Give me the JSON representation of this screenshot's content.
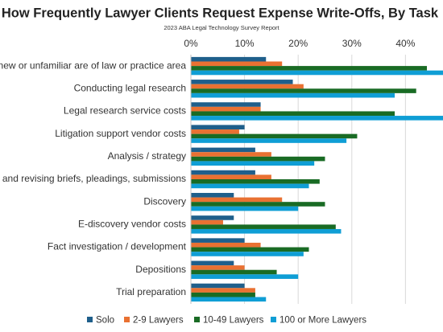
{
  "chart_data": {
    "type": "barh",
    "title": "How Frequently Lawyer Clients Request Expense Write-Offs, By Task",
    "subtitle": "2023 ABA Legal Technology Survey Report",
    "categories": [
      "Getting up to speed on new or unfamiliar are of law or practice area",
      "Conducting legal research",
      "Legal research service costs",
      "Litigation support vendor costs",
      "Analysis / strategy",
      "Drafting and revising briefs, pleadings, submissions",
      "Discovery",
      "E-discovery vendor costs",
      "Fact investigation / development",
      "Depositions",
      "Trial preparation"
    ],
    "series": [
      {
        "name": "Solo",
        "color": "#1f5f8b",
        "values": [
          14,
          19,
          13,
          10,
          12,
          12,
          8,
          8,
          10,
          8,
          10
        ]
      },
      {
        "name": "2-9 Lawyers",
        "color": "#e97132",
        "values": [
          17,
          21,
          13,
          9,
          15,
          15,
          17,
          6,
          13,
          10,
          12
        ]
      },
      {
        "name": "10-49 Lawyers",
        "color": "#196b24",
        "values": [
          44,
          42,
          38,
          31,
          25,
          24,
          25,
          27,
          22,
          16,
          12
        ]
      },
      {
        "name": "100 or More Lawyers",
        "color": "#0f9ed5",
        "values": [
          48,
          38,
          48,
          29,
          23,
          22,
          20,
          28,
          21,
          20,
          14
        ]
      }
    ],
    "xlim": [
      0,
      47
    ],
    "xticks": [
      {
        "value": 0,
        "label": "0%"
      },
      {
        "value": 10,
        "label": "10%"
      },
      {
        "value": 20,
        "label": "20%"
      },
      {
        "value": 30,
        "label": "30%"
      },
      {
        "value": 40,
        "label": "40%"
      }
    ],
    "grid": true,
    "legend": "bottom"
  }
}
